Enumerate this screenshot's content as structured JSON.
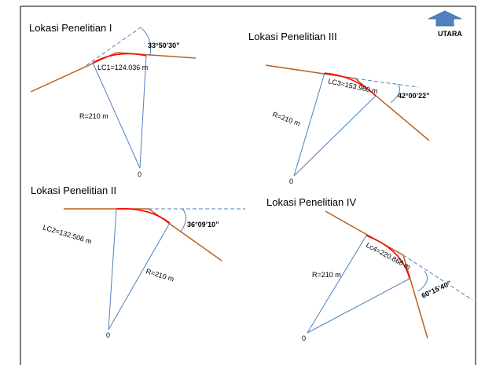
{
  "north": {
    "label": "UTARA",
    "arrow_color": "#4f81bd"
  },
  "colors": {
    "tangent": "#b8601e",
    "radius": "#4f81bd",
    "curve": "#ff0000",
    "extension": "#4f81bd"
  },
  "panels": [
    {
      "title": "Lokasi Penelitian I",
      "curve_length": "LC1=124.036 m",
      "radius": "R=210 m",
      "deflection": "33°50’30”",
      "center": "0"
    },
    {
      "title": "Lokasi Penelitian III",
      "curve_length": "LC3=153.960 m",
      "radius": "R=210 m",
      "deflection": "42°00’22”",
      "center": "0"
    },
    {
      "title": "Lokasi Penelitian II",
      "curve_length": "LC2=132.506 m",
      "radius": "R=210 m",
      "deflection": "36°09’10”",
      "center": "0"
    },
    {
      "title": "Lokasi Penelitian IV",
      "curve_length": "Lc4=220.868 m",
      "radius": "R=210 m",
      "deflection": "60°15’40”",
      "center": "0"
    }
  ]
}
